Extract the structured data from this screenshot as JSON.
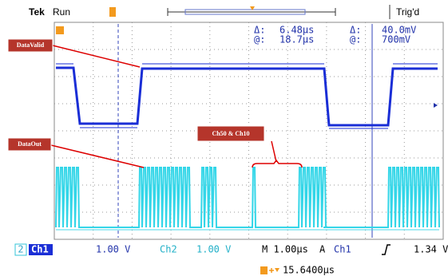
{
  "header": {
    "brand": "Tek",
    "status": "Run",
    "trigger": "Trig'd"
  },
  "readout": {
    "time_delta_label": "Δ:",
    "time_delta": "6.48µs",
    "time_at_label": "@:",
    "time_at": "18.7µs",
    "volt_delta_label": "Δ:",
    "volt_delta": "40.0mV",
    "volt_at_label": "@:",
    "volt_at": "700mV"
  },
  "annotations": {
    "data_valid": "DataValid",
    "data_out": "DataOut",
    "channels": "Ch50 & Ch10"
  },
  "footer": {
    "ch2_marker": "2",
    "ch1": "Ch1",
    "ch1_scale": "1.00 V",
    "ch2": "Ch2",
    "ch2_scale": "1.00 V",
    "timebase": "M 1.00µs",
    "acq": "A",
    "trig_source": "Ch1",
    "trig_level": "1.34 V",
    "position": "15.6400µs"
  }
}
